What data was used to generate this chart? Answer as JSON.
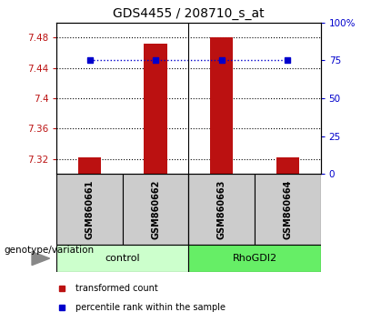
{
  "title": "GDS4455 / 208710_s_at",
  "samples": [
    "GSM860661",
    "GSM860662",
    "GSM860663",
    "GSM860664"
  ],
  "red_values": [
    7.322,
    7.472,
    7.48,
    7.322
  ],
  "blue_values": [
    75,
    75,
    75,
    75
  ],
  "ylim_left": [
    7.3,
    7.5
  ],
  "ylim_right": [
    0,
    100
  ],
  "yticks_left": [
    7.32,
    7.36,
    7.4,
    7.44,
    7.48
  ],
  "ytick_left_labels": [
    "7.32",
    "7.36",
    "7.4",
    "7.44",
    "7.48"
  ],
  "yticks_right": [
    0,
    25,
    50,
    75,
    100
  ],
  "ytick_right_labels": [
    "0",
    "25",
    "50",
    "75",
    "100%"
  ],
  "group_labels": [
    "control",
    "RhoGDI2"
  ],
  "group_colors_light": [
    "#ccffcc",
    "#66ee66"
  ],
  "group_ranges": [
    [
      0,
      2
    ],
    [
      2,
      4
    ]
  ],
  "bar_color": "#bb1111",
  "dot_color": "#0000cc",
  "bar_width": 0.35,
  "legend_red_label": "transformed count",
  "legend_blue_label": "percentile rank within the sample",
  "genotype_label": "genotype/variation"
}
